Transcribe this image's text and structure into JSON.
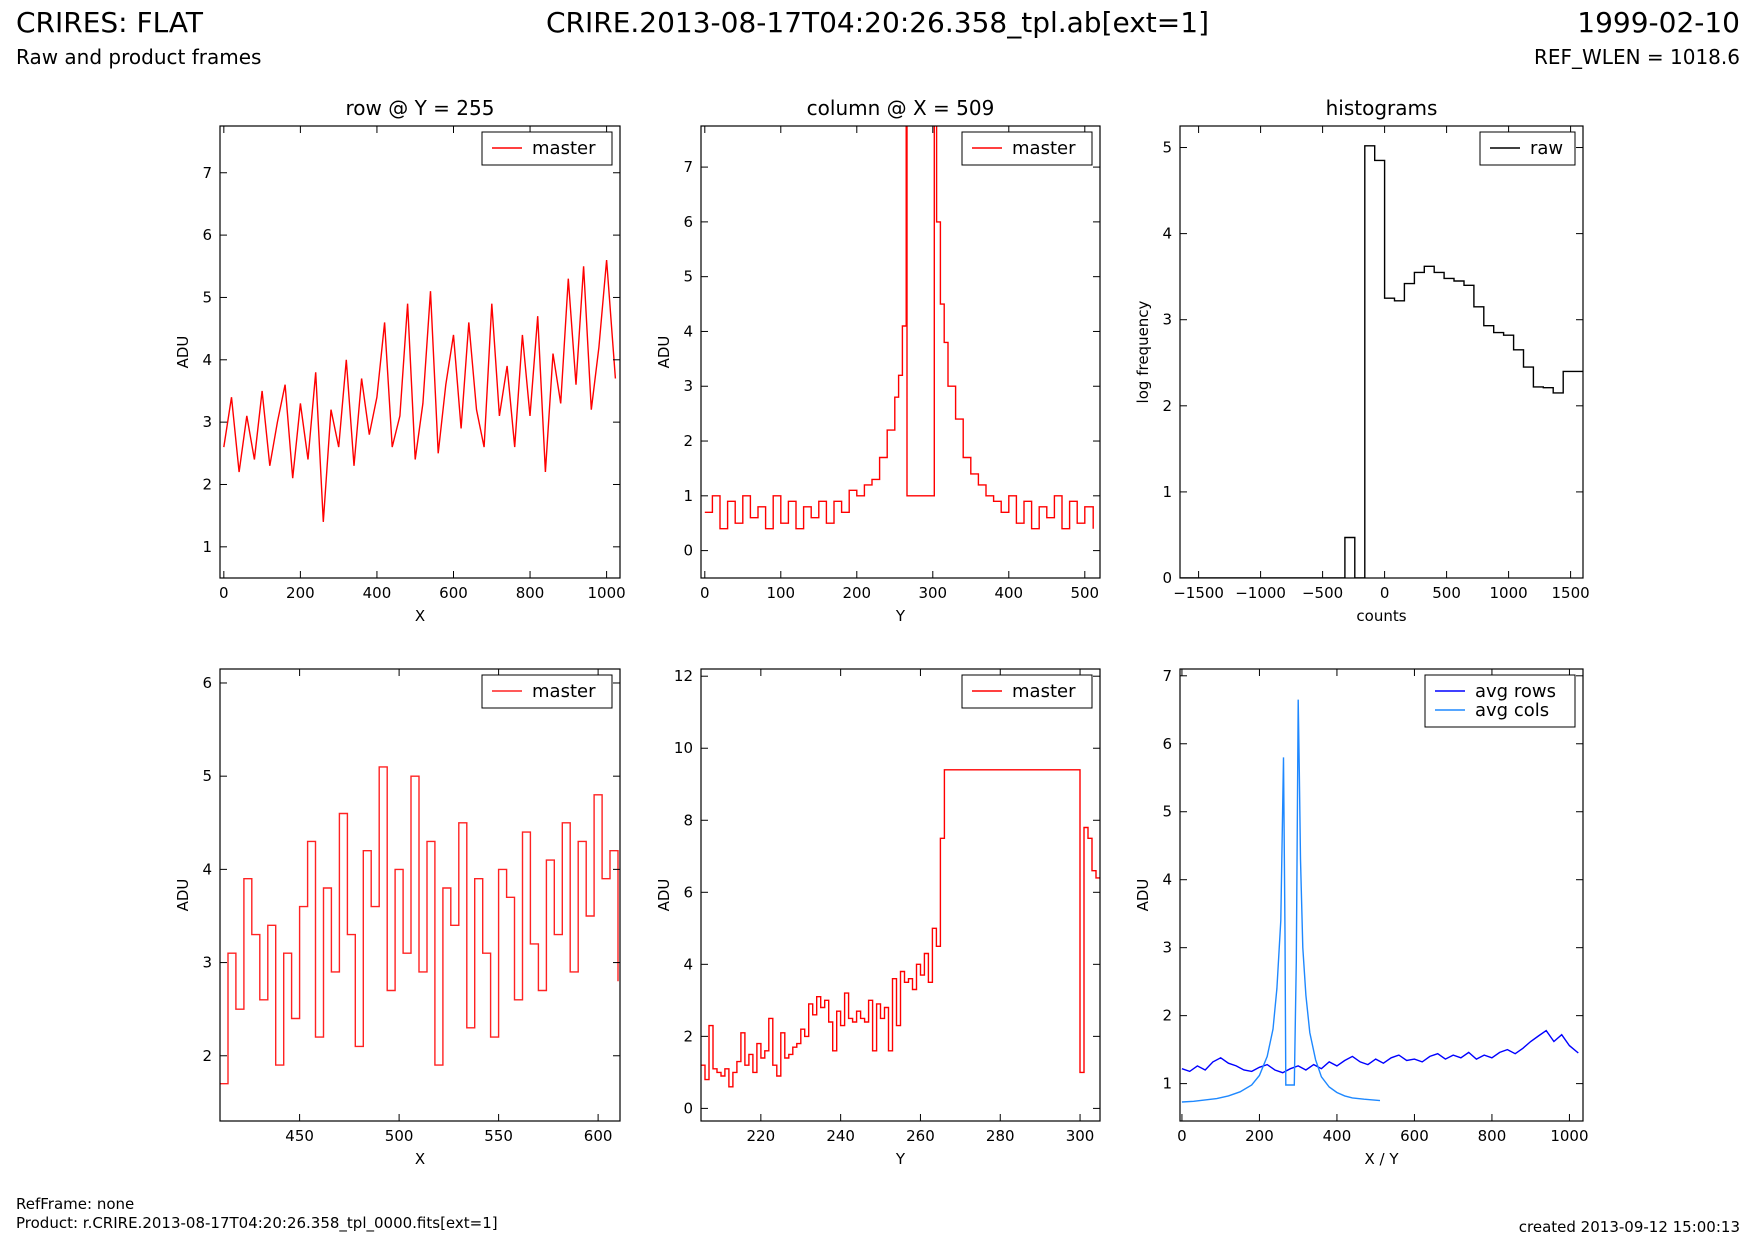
{
  "header": {
    "title": "CRIRES: FLAT",
    "subtitle": "Raw and product frames",
    "file": "CRIRE.2013-08-17T04:20:26.358_tpl.ab[ext=1]",
    "date": "1999-02-10",
    "ref_wlen": "REF_WLEN = 1018.6"
  },
  "footer": {
    "ref_frame": "RefFrame: none",
    "product": "Product: r.CRIRE.2013-08-17T04:20:26.358_tpl_0000.fits[ext=1]",
    "created": "created 2013-09-12 15:00:13"
  },
  "chart_data": [
    {
      "type": "line",
      "title": "row @ Y = 255",
      "xlabel": "X",
      "ylabel": "ADU",
      "xlim": [
        -10,
        1035
      ],
      "ylim": [
        0.5,
        7.75
      ],
      "xticks": [
        0,
        200,
        400,
        600,
        800,
        1000
      ],
      "yticks": [
        1,
        2,
        3,
        4,
        5,
        6,
        7
      ],
      "legend": "top-right",
      "grid": false,
      "series": [
        {
          "name": "master",
          "color": "#ff0000",
          "step": false,
          "x": [
            0,
            20,
            40,
            60,
            80,
            100,
            120,
            140,
            160,
            180,
            200,
            220,
            240,
            260,
            280,
            300,
            320,
            340,
            360,
            380,
            400,
            420,
            440,
            460,
            480,
            500,
            520,
            540,
            560,
            580,
            600,
            620,
            640,
            660,
            680,
            700,
            720,
            740,
            760,
            780,
            800,
            820,
            840,
            860,
            880,
            900,
            920,
            940,
            960,
            980,
            1000,
            1023
          ],
          "y": [
            2.6,
            3.4,
            2.2,
            3.1,
            2.4,
            3.5,
            2.3,
            3.0,
            3.6,
            2.1,
            3.3,
            2.4,
            3.8,
            1.4,
            3.2,
            2.6,
            4.0,
            2.3,
            3.7,
            2.8,
            3.4,
            4.6,
            2.6,
            3.1,
            4.9,
            2.4,
            3.3,
            5.1,
            2.5,
            3.6,
            4.4,
            2.9,
            4.6,
            3.2,
            2.6,
            4.9,
            3.1,
            3.9,
            2.6,
            4.4,
            3.1,
            4.7,
            2.2,
            4.1,
            3.3,
            5.3,
            3.6,
            5.5,
            3.2,
            4.2,
            5.6,
            3.7
          ]
        }
      ]
    },
    {
      "type": "line",
      "title": "column @ X = 509",
      "xlabel": "Y",
      "ylabel": "ADU",
      "xlim": [
        -5,
        520
      ],
      "ylim": [
        -0.5,
        7.75
      ],
      "xticks": [
        0,
        100,
        200,
        300,
        400,
        500
      ],
      "yticks": [
        0,
        1,
        2,
        3,
        4,
        5,
        6,
        7
      ],
      "legend": "top-right",
      "grid": false,
      "series": [
        {
          "name": "master",
          "color": "#ff0000",
          "step": true,
          "x": [
            0,
            10,
            20,
            30,
            40,
            50,
            60,
            70,
            80,
            90,
            100,
            110,
            120,
            130,
            140,
            150,
            160,
            170,
            180,
            190,
            200,
            210,
            220,
            230,
            240,
            250,
            255,
            260,
            265,
            266,
            300,
            302,
            305,
            310,
            315,
            320,
            330,
            340,
            350,
            360,
            370,
            380,
            390,
            400,
            410,
            420,
            430,
            440,
            450,
            460,
            470,
            480,
            490,
            500,
            511
          ],
          "y": [
            0.7,
            1.0,
            0.4,
            0.9,
            0.5,
            1.0,
            0.6,
            0.8,
            0.4,
            1.0,
            0.5,
            0.9,
            0.4,
            0.8,
            0.6,
            0.9,
            0.5,
            0.9,
            0.7,
            1.1,
            1.0,
            1.2,
            1.3,
            1.7,
            2.2,
            2.8,
            3.2,
            4.1,
            7.8,
            1.0,
            1.0,
            7.8,
            6.0,
            4.5,
            3.8,
            3.0,
            2.4,
            1.7,
            1.4,
            1.2,
            1.0,
            0.9,
            0.7,
            1.0,
            0.5,
            0.9,
            0.4,
            0.8,
            0.6,
            1.0,
            0.4,
            0.9,
            0.5,
            0.8,
            0.4
          ]
        }
      ]
    },
    {
      "type": "line",
      "title": "histograms",
      "xlabel": "counts",
      "ylabel": "log frequency",
      "xlim": [
        -1650,
        1600
      ],
      "ylim": [
        0,
        5.25
      ],
      "xticks": [
        -1500,
        -1000,
        -500,
        0,
        500,
        1000,
        1500
      ],
      "yticks": [
        0,
        1,
        2,
        3,
        4,
        5
      ],
      "legend": "top-right",
      "grid": false,
      "series": [
        {
          "name": "raw",
          "color": "#000000",
          "step": true,
          "x": [
            -1650,
            -320,
            -240,
            -160,
            -80,
            0,
            80,
            160,
            240,
            320,
            400,
            480,
            560,
            640,
            720,
            800,
            880,
            960,
            1040,
            1120,
            1200,
            1280,
            1360,
            1440,
            1520,
            1600
          ],
          "y": [
            0,
            0.47,
            0,
            5.02,
            4.85,
            3.25,
            3.22,
            3.42,
            3.55,
            3.62,
            3.55,
            3.48,
            3.45,
            3.4,
            3.15,
            2.93,
            2.85,
            2.82,
            2.65,
            2.45,
            2.22,
            2.21,
            2.15,
            2.4,
            2.4,
            2.4
          ]
        }
      ]
    },
    {
      "type": "line",
      "title": "",
      "xlabel": "X",
      "ylabel": "ADU",
      "xlim": [
        410,
        611
      ],
      "ylim": [
        1.3,
        6.15
      ],
      "xticks": [
        450,
        500,
        550,
        600
      ],
      "yticks": [
        2,
        3,
        4,
        5,
        6
      ],
      "legend": "top-right",
      "grid": false,
      "series": [
        {
          "name": "master",
          "color": "#ff2222",
          "step": true,
          "x": [
            410,
            414,
            418,
            422,
            426,
            430,
            434,
            438,
            442,
            446,
            450,
            454,
            458,
            462,
            466,
            470,
            474,
            478,
            482,
            486,
            490,
            494,
            498,
            502,
            506,
            510,
            514,
            518,
            522,
            526,
            530,
            534,
            538,
            542,
            546,
            550,
            554,
            558,
            562,
            566,
            570,
            574,
            578,
            582,
            586,
            590,
            594,
            598,
            602,
            606,
            610
          ],
          "y": [
            1.7,
            3.1,
            2.5,
            3.9,
            3.3,
            2.6,
            3.4,
            1.9,
            3.1,
            2.4,
            3.6,
            4.3,
            2.2,
            3.8,
            2.9,
            4.6,
            3.3,
            2.1,
            4.2,
            3.6,
            5.1,
            2.7,
            4.0,
            3.1,
            5.0,
            2.9,
            4.3,
            1.9,
            3.8,
            3.4,
            4.5,
            2.3,
            3.9,
            3.1,
            2.2,
            4.0,
            3.7,
            2.6,
            4.4,
            3.2,
            2.7,
            4.1,
            3.3,
            4.5,
            2.9,
            4.3,
            3.5,
            4.8,
            3.9,
            4.2,
            2.8
          ]
        }
      ]
    },
    {
      "type": "line",
      "title": "",
      "xlabel": "Y",
      "ylabel": "ADU",
      "xlim": [
        205,
        305
      ],
      "ylim": [
        -0.35,
        12.2
      ],
      "xticks": [
        220,
        240,
        260,
        280,
        300
      ],
      "yticks": [
        0,
        2,
        4,
        6,
        8,
        10,
        12
      ],
      "legend": "top-right",
      "grid": false,
      "series": [
        {
          "name": "master",
          "color": "#ff0000",
          "step": true,
          "x": [
            205,
            206,
            207,
            208,
            209,
            210,
            211,
            212,
            213,
            214,
            215,
            216,
            217,
            218,
            219,
            220,
            221,
            222,
            223,
            224,
            225,
            226,
            227,
            228,
            229,
            230,
            231,
            232,
            233,
            234,
            235,
            236,
            237,
            238,
            239,
            240,
            241,
            242,
            243,
            244,
            245,
            246,
            247,
            248,
            249,
            250,
            251,
            252,
            253,
            254,
            255,
            256,
            257,
            258,
            259,
            260,
            261,
            262,
            263,
            264,
            265,
            266,
            300,
            301,
            302,
            303,
            304,
            305
          ],
          "y": [
            1.2,
            0.8,
            2.3,
            1.1,
            1.0,
            0.9,
            1.1,
            0.6,
            1.0,
            1.3,
            2.1,
            1.2,
            1.5,
            1.0,
            1.8,
            1.4,
            1.6,
            2.5,
            1.2,
            0.9,
            2.1,
            1.4,
            1.5,
            1.7,
            1.8,
            2.2,
            2.0,
            2.9,
            2.6,
            3.1,
            2.8,
            3.0,
            2.4,
            1.6,
            2.7,
            2.3,
            3.2,
            2.5,
            2.4,
            2.7,
            2.5,
            2.4,
            3.0,
            1.6,
            2.9,
            2.5,
            2.8,
            1.6,
            3.6,
            2.3,
            3.8,
            3.5,
            3.6,
            3.3,
            4.0,
            3.7,
            4.3,
            3.5,
            5.0,
            4.5,
            7.5,
            9.4,
            1.0,
            7.8,
            7.5,
            6.6,
            6.4,
            6.4
          ]
        }
      ]
    },
    {
      "type": "line",
      "title": "",
      "xlabel": "X / Y",
      "ylabel": "ADU",
      "xlim": [
        -5,
        1035
      ],
      "ylim": [
        0.45,
        7.1
      ],
      "xticks": [
        0,
        200,
        400,
        600,
        800,
        1000
      ],
      "yticks": [
        1,
        2,
        3,
        4,
        5,
        6,
        7
      ],
      "legend": "top-right",
      "grid": false,
      "series": [
        {
          "name": "avg rows",
          "color": "#0000ff",
          "step": false,
          "x": [
            0,
            20,
            40,
            60,
            80,
            100,
            120,
            140,
            160,
            180,
            200,
            220,
            240,
            260,
            280,
            300,
            320,
            340,
            360,
            380,
            400,
            420,
            440,
            460,
            480,
            500,
            520,
            540,
            560,
            580,
            600,
            620,
            640,
            660,
            680,
            700,
            720,
            740,
            760,
            780,
            800,
            820,
            840,
            860,
            880,
            900,
            920,
            940,
            960,
            980,
            1000,
            1023
          ],
          "y": [
            1.22,
            1.18,
            1.26,
            1.2,
            1.32,
            1.38,
            1.3,
            1.26,
            1.2,
            1.18,
            1.24,
            1.28,
            1.2,
            1.16,
            1.22,
            1.26,
            1.2,
            1.28,
            1.22,
            1.32,
            1.26,
            1.34,
            1.4,
            1.32,
            1.28,
            1.36,
            1.3,
            1.38,
            1.42,
            1.34,
            1.36,
            1.32,
            1.4,
            1.44,
            1.36,
            1.42,
            1.38,
            1.46,
            1.36,
            1.42,
            1.38,
            1.46,
            1.5,
            1.44,
            1.52,
            1.62,
            1.7,
            1.78,
            1.62,
            1.72,
            1.56,
            1.45
          ]
        },
        {
          "name": "avg cols",
          "color": "#1e88ff",
          "step": false,
          "x": [
            0,
            30,
            60,
            90,
            120,
            150,
            180,
            200,
            220,
            235,
            245,
            255,
            262,
            266,
            268,
            290,
            295,
            300,
            303,
            306,
            312,
            320,
            330,
            345,
            360,
            380,
            400,
            420,
            440,
            470,
            511
          ],
          "y": [
            0.73,
            0.74,
            0.76,
            0.78,
            0.82,
            0.88,
            0.98,
            1.12,
            1.4,
            1.8,
            2.4,
            3.4,
            5.8,
            3.2,
            0.98,
            0.98,
            2.8,
            6.65,
            5.6,
            4.3,
            3.0,
            2.3,
            1.75,
            1.35,
            1.1,
            0.95,
            0.87,
            0.82,
            0.79,
            0.77,
            0.75
          ]
        }
      ]
    }
  ]
}
